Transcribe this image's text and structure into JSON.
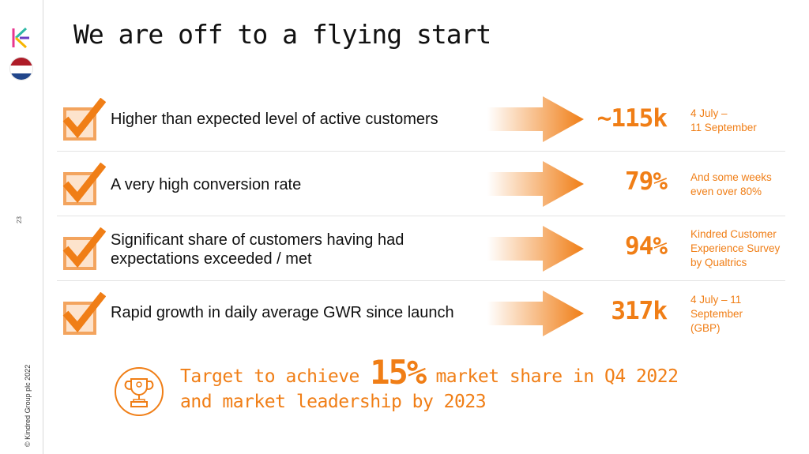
{
  "slide": {
    "title": "We are off to a flying start",
    "page_number": "23",
    "copyright": "© Kindred Group plc 2022"
  },
  "brand": {
    "accent": "#f07e16",
    "logo_icon": "kindred-k-logo-icon",
    "flag_icon": "netherlands-flag-icon"
  },
  "rows": [
    {
      "label": "Higher than expected level of active customers",
      "value": "~115k",
      "note": "4 July –\n11 September"
    },
    {
      "label": "A very high conversion rate",
      "value": "79%",
      "note": "And some weeks even over 80%"
    },
    {
      "label": "Significant share of customers having had expectations exceeded / met",
      "value": "94%",
      "note": "Kindred Customer Experience Survey by Qualtrics"
    },
    {
      "label": "Rapid growth in daily average GWR since launch",
      "value": "317k",
      "note": "4 July – 11 September (GBP)"
    }
  ],
  "target": {
    "prefix": "Target to achieve ",
    "highlight": "15%",
    "suffix": " market share in Q4 2022",
    "line2": "and market leadership by 2023",
    "icon": "trophy-icon"
  }
}
